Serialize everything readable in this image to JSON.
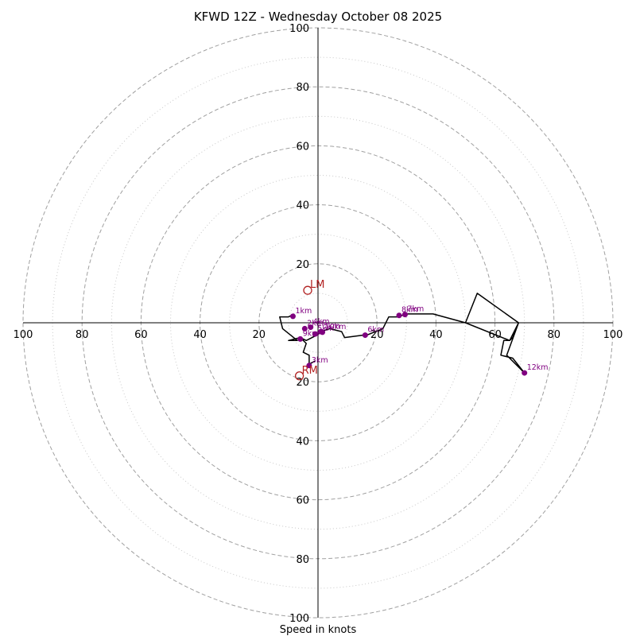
{
  "chart_data": {
    "type": "hodograph",
    "title": "KFWD 12Z - Wednesday October 08 2025",
    "xlabel": "Speed in knots",
    "range": [
      -100,
      100
    ],
    "ring_major": [
      20,
      40,
      60,
      80,
      100
    ],
    "ring_minor": [
      10,
      30,
      50,
      70,
      90
    ],
    "tick_values": [
      20,
      40,
      60,
      80,
      100
    ],
    "tick_labels": [
      "20",
      "40",
      "60",
      "80",
      "100"
    ],
    "colors": {
      "trace": "#000000",
      "marker": "#800080",
      "motion": "#b22222",
      "ring_major": "#a0a0a0",
      "ring_minor": "#c8c8c8"
    },
    "hodograph_trace": [
      [
        -8,
        3
      ],
      [
        -10,
        2
      ],
      [
        -13,
        2
      ],
      [
        -12,
        -2
      ],
      [
        -7,
        -6
      ],
      [
        -8,
        -6
      ],
      [
        -10,
        -6
      ],
      [
        -6,
        -5
      ],
      [
        -4,
        -6
      ],
      [
        -2,
        -5
      ],
      [
        1,
        -3
      ],
      [
        4,
        -2
      ],
      [
        8,
        -3
      ],
      [
        9,
        -5
      ],
      [
        17,
        -4
      ],
      [
        22,
        -2
      ],
      [
        24,
        2
      ],
      [
        27,
        2
      ],
      [
        30,
        3
      ],
      [
        35,
        3
      ],
      [
        39,
        3
      ],
      [
        50,
        0
      ],
      [
        54,
        10
      ],
      [
        68,
        0
      ],
      [
        65,
        -6
      ],
      [
        63,
        -6
      ],
      [
        62,
        -11
      ],
      [
        66,
        -12
      ],
      [
        70,
        -17
      ],
      [
        64,
        -11
      ],
      [
        68,
        0
      ],
      [
        66,
        -5
      ],
      [
        65,
        -6
      ],
      [
        50,
        0
      ],
      [
        39,
        3
      ],
      [
        30,
        3
      ],
      [
        27,
        2
      ],
      [
        24,
        2
      ],
      [
        22,
        -2
      ],
      [
        17,
        -4
      ],
      [
        9,
        -5
      ],
      [
        8,
        -3
      ],
      [
        4,
        -2
      ],
      [
        1,
        -3
      ],
      [
        0,
        -4
      ],
      [
        -4,
        -6
      ],
      [
        -6,
        -5
      ],
      [
        -4,
        -7
      ],
      [
        -5,
        -10
      ],
      [
        -3,
        -11
      ],
      [
        -3,
        -14
      ],
      [
        -1,
        -13
      ]
    ],
    "height_markers": [
      {
        "label": "1km",
        "u": -8.5,
        "v": 2.2
      },
      {
        "label": "2km",
        "u": -4.5,
        "v": -2.0
      },
      {
        "label": "3km",
        "u": -3.0,
        "v": -14.5
      },
      {
        "label": "4km",
        "u": -2.5,
        "v": -1.5
      },
      {
        "label": "5km",
        "u": -1.0,
        "v": -3.8
      },
      {
        "label": "5km",
        "u": 1.0,
        "v": -3.0
      },
      {
        "label": "6km",
        "u": 16.0,
        "v": -4.2
      },
      {
        "label": "7km",
        "u": 29.5,
        "v": 2.8
      },
      {
        "label": "8km",
        "u": 27.5,
        "v": 2.5
      },
      {
        "label": "9km",
        "u": -6.0,
        "v": -5.5
      },
      {
        "label": "10km",
        "u": 1.5,
        "v": -3.2
      },
      {
        "label": "12km",
        "u": 70.0,
        "v": -17.0
      }
    ],
    "storm_motion": [
      {
        "label": "LM",
        "u": -3.5,
        "v": 11.0
      },
      {
        "label": "RM",
        "u": -6.3,
        "v": -18.0
      }
    ]
  }
}
